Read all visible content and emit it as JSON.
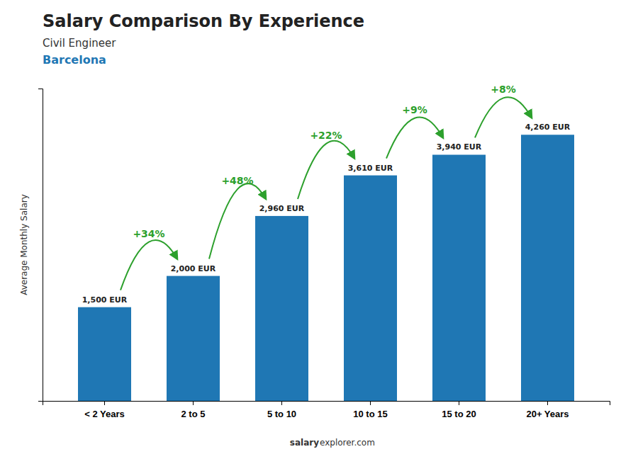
{
  "chart_data": {
    "type": "bar",
    "title": "Salary Comparison By Experience",
    "subtitle": [
      "Civil Engineer",
      "Barcelona"
    ],
    "ylabel": "Average Monthly Salary",
    "categories": [
      "< 2 Years",
      "2 to 5",
      "5 to 10",
      "10 to 15",
      "15 to 20",
      "20+ Years"
    ],
    "values": [
      1500,
      2000,
      2960,
      3610,
      3940,
      4260
    ],
    "value_labels": [
      "1,500 EUR",
      "2,000 EUR",
      "2,960 EUR",
      "3,610 EUR",
      "3,940 EUR",
      "4,260 EUR"
    ],
    "data_labels": true,
    "annotations": [
      "+34%",
      "+48%",
      "+22%",
      "+9%",
      "+8%"
    ],
    "footer": [
      "salary",
      "explorer.com"
    ],
    "ylim": [
      0,
      5000
    ],
    "tick_labels": "x",
    "grid": false
  }
}
